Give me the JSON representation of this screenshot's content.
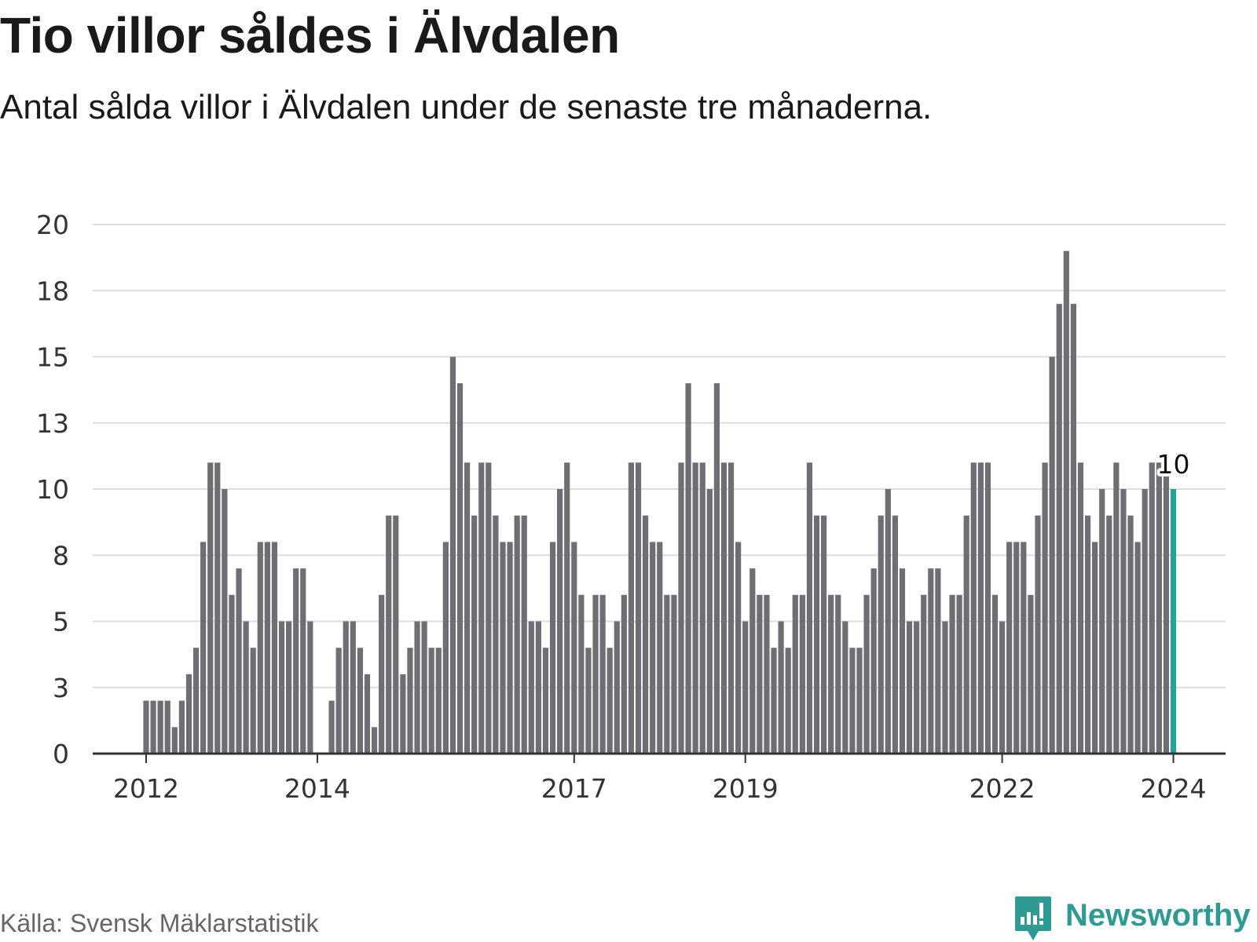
{
  "title": "Tio villor såldes i Älvdalen",
  "subtitle": "Antal sålda villor i Älvdalen under de senaste tre månaderna.",
  "source": "Källa: Svensk Mäklarstatistik",
  "logo": {
    "text": "Newsworthy",
    "icon": "newsworthy-logo-icon"
  },
  "colors": {
    "bar": "#6f6e74",
    "highlight": "#2aa198",
    "grid": "#dddddd",
    "axis": "#333333",
    "brand": "#2f9a93"
  },
  "chart_data": {
    "type": "bar",
    "title": "Tio villor såldes i Älvdalen",
    "subtitle": "Antal sålda villor i Älvdalen under de senaste tre månaderna.",
    "xlabel": "",
    "ylabel": "",
    "ylim": [
      0,
      20
    ],
    "y_ticks": [
      {
        "value": 0,
        "label": "0"
      },
      {
        "value": 2.5,
        "label": "3"
      },
      {
        "value": 5,
        "label": "5"
      },
      {
        "value": 7.5,
        "label": "8"
      },
      {
        "value": 10,
        "label": "10"
      },
      {
        "value": 12.5,
        "label": "13"
      },
      {
        "value": 15,
        "label": "15"
      },
      {
        "value": 17.5,
        "label": "18"
      },
      {
        "value": 20,
        "label": "20"
      }
    ],
    "x_ticks": [
      {
        "index": 0,
        "label": "2012"
      },
      {
        "index": 24,
        "label": "2014"
      },
      {
        "index": 60,
        "label": "2017"
      },
      {
        "index": 84,
        "label": "2019"
      },
      {
        "index": 120,
        "label": "2022"
      },
      {
        "index": 144,
        "label": "2024"
      }
    ],
    "categories_start": "2012-01",
    "values": [
      2,
      2,
      2,
      2,
      1,
      2,
      3,
      4,
      8,
      11,
      11,
      10,
      6,
      7,
      5,
      4,
      8,
      8,
      8,
      5,
      5,
      7,
      7,
      5,
      0,
      0,
      2,
      4,
      5,
      5,
      4,
      3,
      1,
      6,
      9,
      9,
      3,
      4,
      5,
      5,
      4,
      4,
      8,
      15,
      14,
      11,
      9,
      11,
      11,
      9,
      8,
      8,
      9,
      9,
      5,
      5,
      4,
      8,
      10,
      11,
      8,
      6,
      4,
      6,
      6,
      4,
      5,
      6,
      11,
      11,
      9,
      8,
      8,
      6,
      6,
      11,
      14,
      11,
      11,
      10,
      14,
      11,
      11,
      8,
      5,
      7,
      6,
      6,
      4,
      5,
      4,
      6,
      6,
      11,
      9,
      9,
      6,
      6,
      5,
      4,
      4,
      6,
      7,
      9,
      10,
      9,
      7,
      5,
      5,
      6,
      7,
      7,
      5,
      6,
      6,
      9,
      11,
      11,
      11,
      6,
      5,
      8,
      8,
      8,
      6,
      9,
      11,
      15,
      17,
      19,
      17,
      11,
      9,
      8,
      10,
      9,
      11,
      10,
      9,
      8,
      10,
      11,
      11,
      11,
      10
    ],
    "highlight_index": 144,
    "highlight_label": "10"
  }
}
